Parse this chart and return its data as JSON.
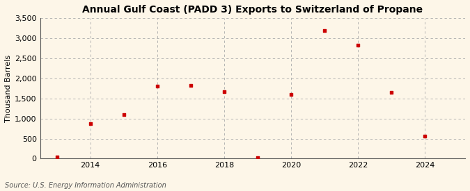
{
  "title": "Annual Gulf Coast (PADD 3) Exports to Switzerland of Propane",
  "ylabel": "Thousand Barrels",
  "source": "Source: U.S. Energy Information Administration",
  "background_color": "#fdf6e8",
  "marker_color": "#cc0000",
  "grid_color": "#aaaaaa",
  "years": [
    2013,
    2014,
    2015,
    2016,
    2017,
    2018,
    2019,
    2020,
    2021,
    2022,
    2023,
    2024
  ],
  "values": [
    50,
    875,
    1100,
    1800,
    1825,
    1675,
    30,
    1600,
    3200,
    2825,
    1650,
    560
  ],
  "ylim": [
    0,
    3500
  ],
  "yticks": [
    0,
    500,
    1000,
    1500,
    2000,
    2500,
    3000,
    3500
  ],
  "xlim": [
    2012.5,
    2025.2
  ],
  "xticks": [
    2014,
    2016,
    2018,
    2020,
    2022,
    2024
  ]
}
